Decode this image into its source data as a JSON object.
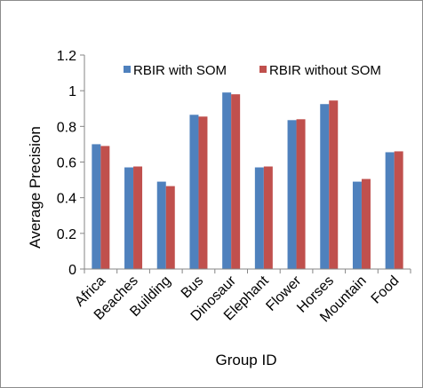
{
  "chart_data": {
    "type": "bar",
    "title": "",
    "xlabel": "Group ID",
    "ylabel": "Average Precision",
    "ylim": [
      0,
      1.2
    ],
    "yticks": [
      "0",
      "0.2",
      "0.4",
      "0.6",
      "0.8",
      "1",
      "1.2"
    ],
    "grid": false,
    "legend": "top-right",
    "categories": [
      "Africa",
      "Beaches",
      "Building",
      "Bus",
      "Dinosaur",
      "Elephant",
      "Flower",
      "Horses",
      "Mountain",
      "Food"
    ],
    "series": [
      {
        "name": "RBIR with SOM",
        "color": "#4f81bd",
        "values": [
          0.7,
          0.57,
          0.49,
          0.865,
          0.99,
          0.57,
          0.835,
          0.925,
          0.49,
          0.655
        ]
      },
      {
        "name": "RBIR without SOM",
        "color": "#c0504d",
        "values": [
          0.69,
          0.575,
          0.465,
          0.855,
          0.98,
          0.575,
          0.84,
          0.945,
          0.505,
          0.66
        ]
      }
    ]
  }
}
